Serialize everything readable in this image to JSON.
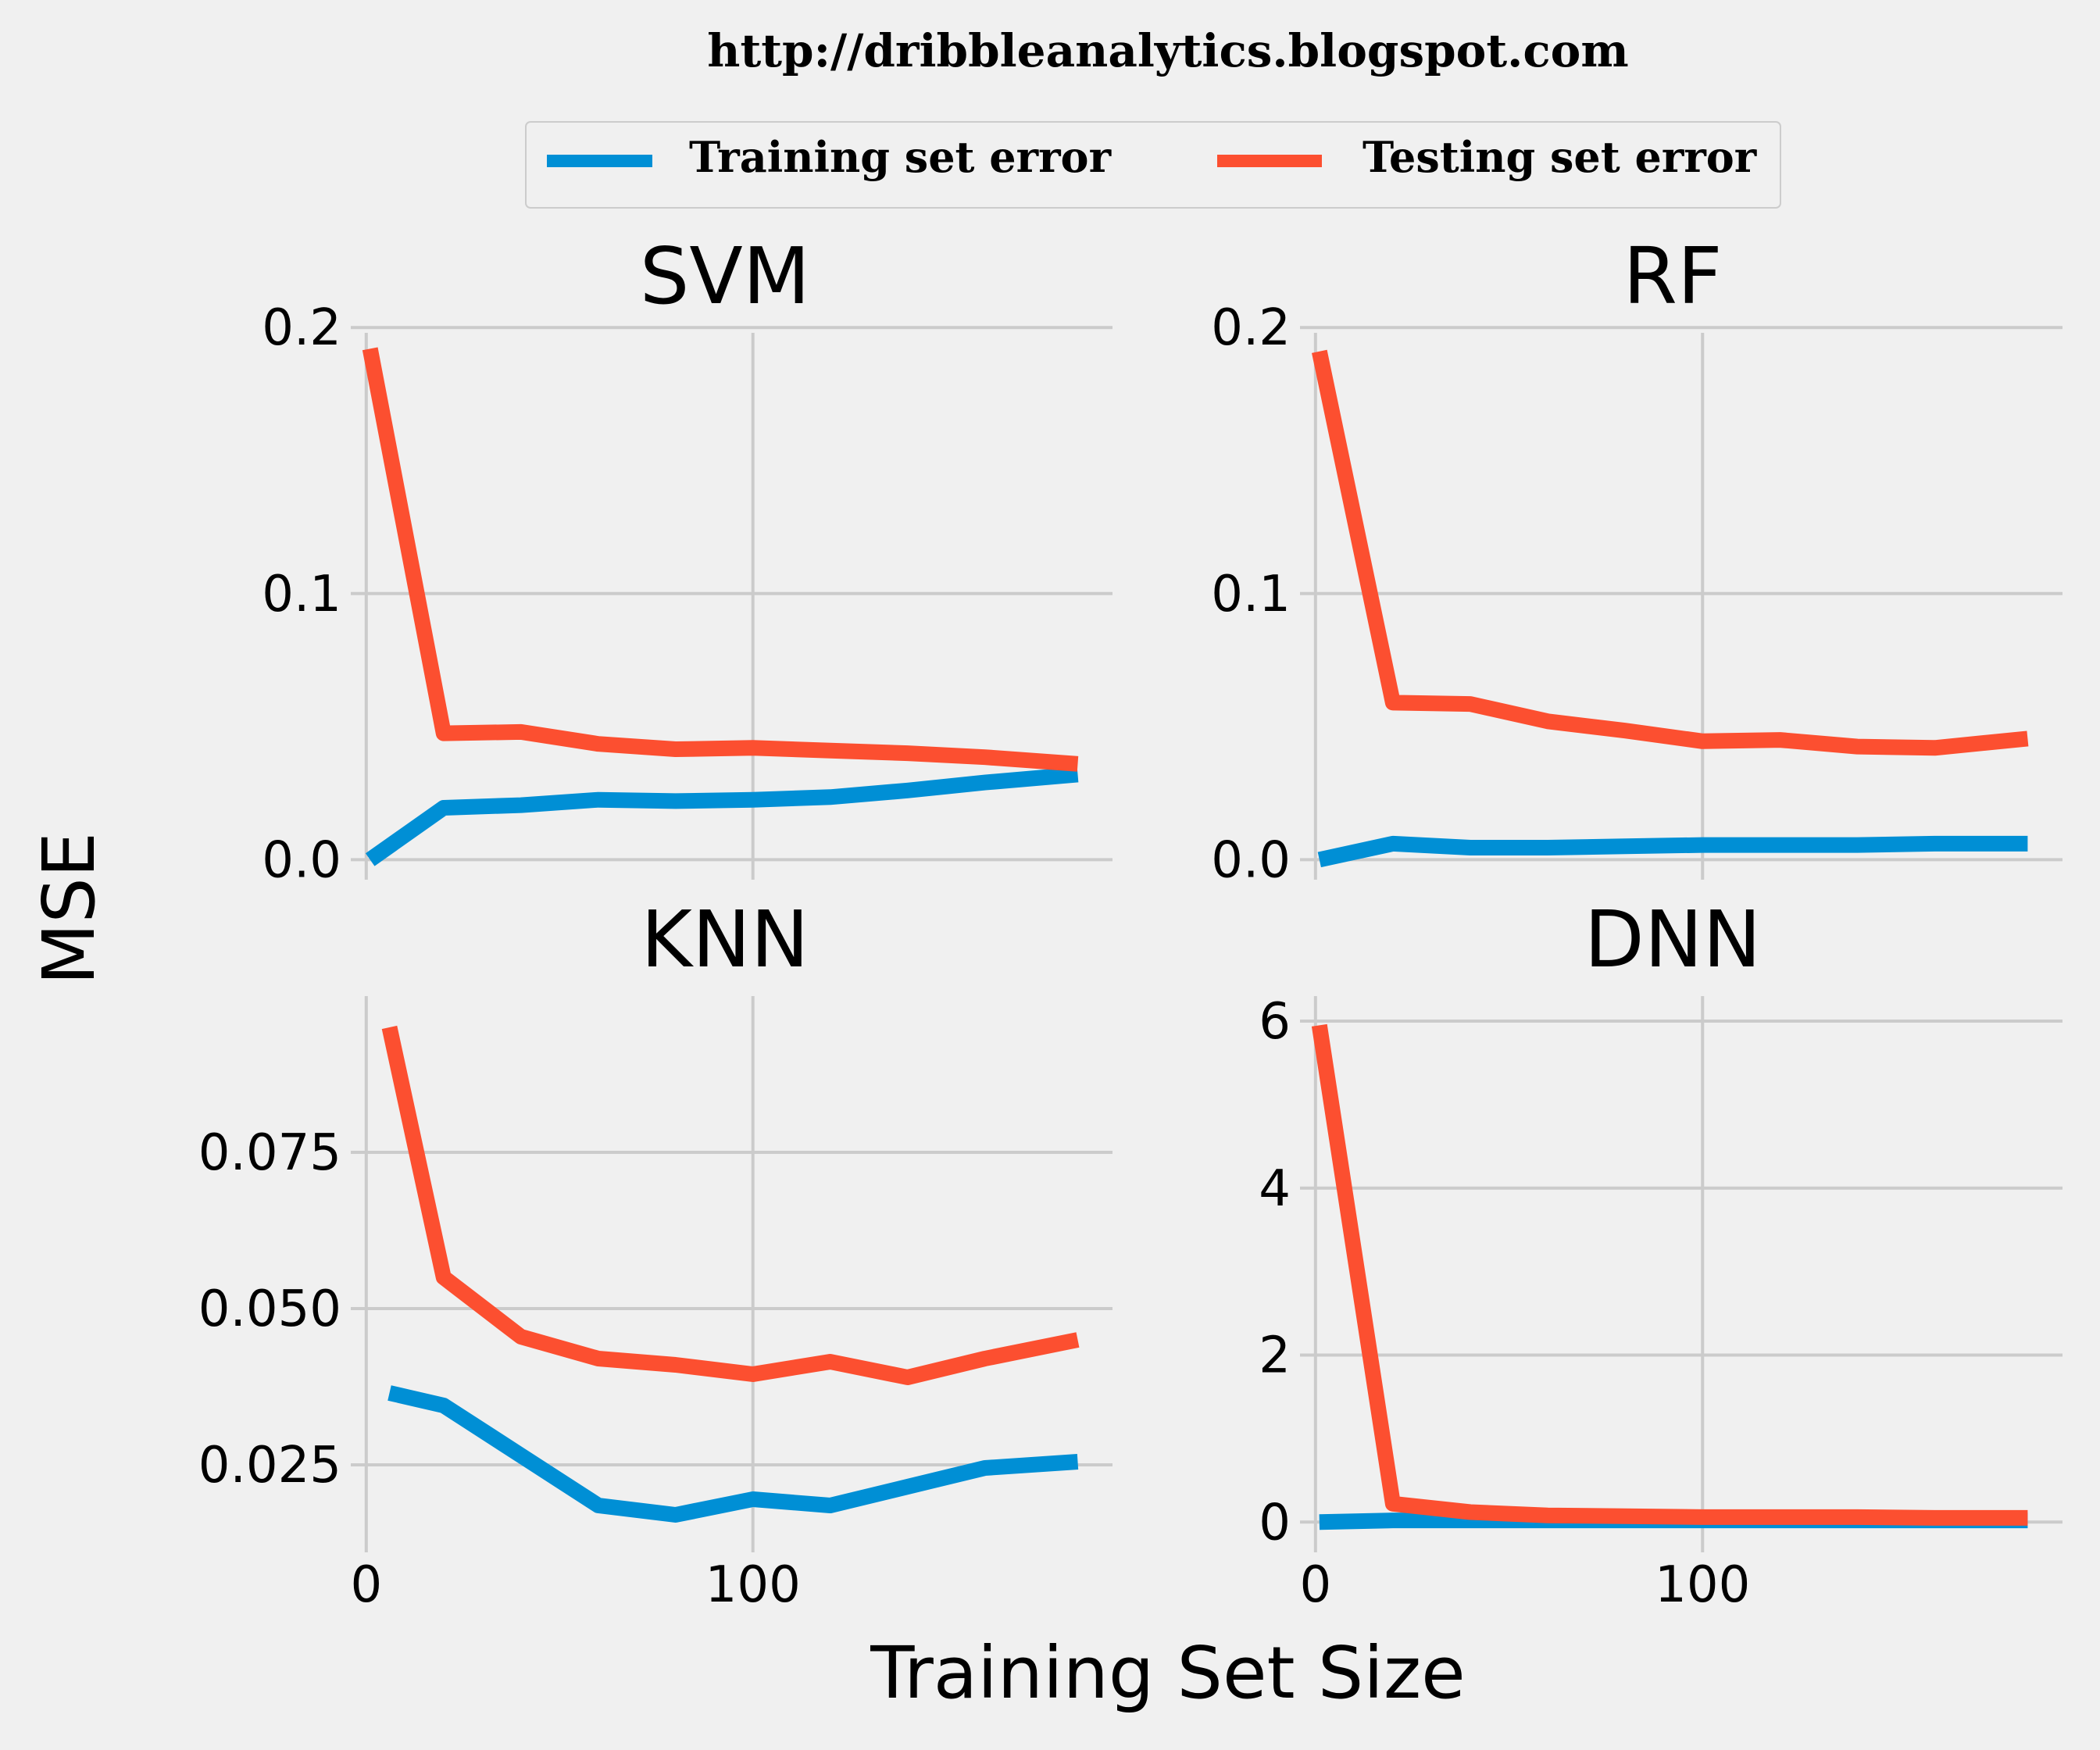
{
  "header": {
    "url_text": "http://dribbleanalytics.blogspot.com"
  },
  "legend": {
    "entries": [
      {
        "label": "Training set error",
        "color": "#008fd5"
      },
      {
        "label": "Testing set error",
        "color": "#fc4f30"
      }
    ]
  },
  "figure": {
    "ylabel": "MSE",
    "xlabel": "Training Set Size"
  },
  "chart_data": [
    {
      "type": "line",
      "title": "SVM",
      "xlim": [
        -4,
        193
      ],
      "ylim": [
        -0.004,
        0.198
      ],
      "xticks": [
        0,
        100
      ],
      "xtick_labels": [
        "0",
        "100"
      ],
      "show_xtick_labels": false,
      "yticks": [
        0.0,
        0.1,
        0.2
      ],
      "ytick_labels": [
        "0.0",
        "0.1",
        "0.2"
      ],
      "grid": true,
      "series": [
        {
          "name": "Training set error",
          "color": "#008fd5",
          "x": [
            1,
            20,
            40,
            60,
            80,
            100,
            120,
            140,
            160,
            184
          ],
          "y": [
            0.0,
            0.0195,
            0.0205,
            0.0225,
            0.022,
            0.0225,
            0.0235,
            0.026,
            0.029,
            0.032
          ]
        },
        {
          "name": "Testing set error",
          "color": "#fc4f30",
          "x": [
            1,
            20,
            40,
            60,
            80,
            100,
            120,
            140,
            160,
            184
          ],
          "y": [
            0.192,
            0.0475,
            0.048,
            0.0435,
            0.0415,
            0.042,
            0.041,
            0.04,
            0.0385,
            0.036
          ]
        }
      ]
    },
    {
      "type": "line",
      "title": "RF",
      "xlim": [
        -4,
        193
      ],
      "ylim": [
        -0.004,
        0.198
      ],
      "xticks": [
        0,
        100
      ],
      "xtick_labels": [
        "0",
        "100"
      ],
      "show_xtick_labels": false,
      "yticks": [
        0.0,
        0.1,
        0.2
      ],
      "ytick_labels": [
        "0.0",
        "0.1",
        "0.2"
      ],
      "grid": true,
      "series": [
        {
          "name": "Training set error",
          "color": "#008fd5",
          "x": [
            1,
            20,
            40,
            60,
            80,
            100,
            120,
            140,
            160,
            184
          ],
          "y": [
            0.0,
            0.006,
            0.0045,
            0.0045,
            0.005,
            0.0055,
            0.0055,
            0.0055,
            0.006,
            0.006
          ]
        },
        {
          "name": "Testing set error",
          "color": "#fc4f30",
          "x": [
            1,
            20,
            40,
            60,
            80,
            100,
            120,
            140,
            160,
            184
          ],
          "y": [
            0.191,
            0.059,
            0.0585,
            0.052,
            0.0485,
            0.0445,
            0.045,
            0.0425,
            0.042,
            0.0455
          ]
        }
      ]
    },
    {
      "type": "line",
      "title": "KNN",
      "xlim": [
        -4,
        193
      ],
      "ylim": [
        0.0125,
        0.1
      ],
      "xticks": [
        0,
        100
      ],
      "xtick_labels": [
        "0",
        "100"
      ],
      "show_xtick_labels": true,
      "yticks": [
        0.025,
        0.05,
        0.075
      ],
      "ytick_labels": [
        "0.025",
        "0.050",
        "0.075"
      ],
      "grid": true,
      "series": [
        {
          "name": "Training set error",
          "color": "#008fd5",
          "x": [
            6,
            20,
            40,
            60,
            80,
            100,
            120,
            140,
            160,
            184
          ],
          "y": [
            0.0365,
            0.0345,
            0.0265,
            0.0185,
            0.017,
            0.0195,
            0.0185,
            0.0215,
            0.0245,
            0.0255
          ]
        },
        {
          "name": "Testing set error",
          "color": "#fc4f30",
          "x": [
            6,
            20,
            40,
            60,
            80,
            100,
            120,
            140,
            160,
            184
          ],
          "y": [
            0.095,
            0.055,
            0.0455,
            0.042,
            0.041,
            0.0395,
            0.0415,
            0.039,
            0.042,
            0.045
          ]
        }
      ]
    },
    {
      "type": "line",
      "title": "DNN",
      "xlim": [
        -4,
        193
      ],
      "ylim": [
        -0.25,
        6.3
      ],
      "xticks": [
        0,
        100
      ],
      "xtick_labels": [
        "0",
        "100"
      ],
      "show_xtick_labels": true,
      "yticks": [
        0,
        2,
        4,
        6
      ],
      "ytick_labels": [
        "0",
        "2",
        "4",
        "6"
      ],
      "grid": true,
      "series": [
        {
          "name": "Training set error",
          "color": "#008fd5",
          "x": [
            1,
            20,
            40,
            60,
            80,
            100,
            120,
            140,
            160,
            184
          ],
          "y": [
            0.0,
            0.02,
            0.02,
            0.02,
            0.02,
            0.02,
            0.02,
            0.02,
            0.02,
            0.02
          ]
        },
        {
          "name": "Testing set error",
          "color": "#fc4f30",
          "x": [
            1,
            20,
            40,
            60,
            80,
            100,
            120,
            140,
            160,
            184
          ],
          "y": [
            5.95,
            0.22,
            0.12,
            0.08,
            0.07,
            0.06,
            0.06,
            0.06,
            0.05,
            0.05
          ]
        }
      ]
    }
  ]
}
